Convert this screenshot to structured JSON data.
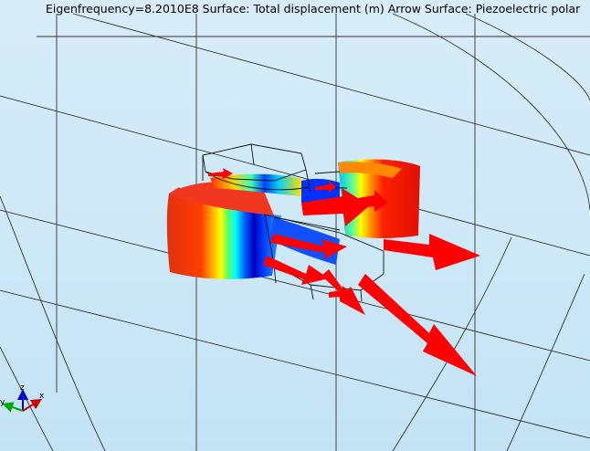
{
  "plot": {
    "title": "Eigenfrequency=8.2010E8   Surface: Total displacement (m)  Arrow Surface: Piezoelectric polar"
  },
  "axes_triad": {
    "x": "x",
    "y": "y",
    "z": "z"
  },
  "colors": {
    "background_top": "#d7ecf8",
    "background_bottom": "#c3e3f5",
    "arrow": "#ff0000",
    "grid_line": "#000000"
  },
  "colormap": "rainbow (blue-cyan-green-yellow-red)"
}
